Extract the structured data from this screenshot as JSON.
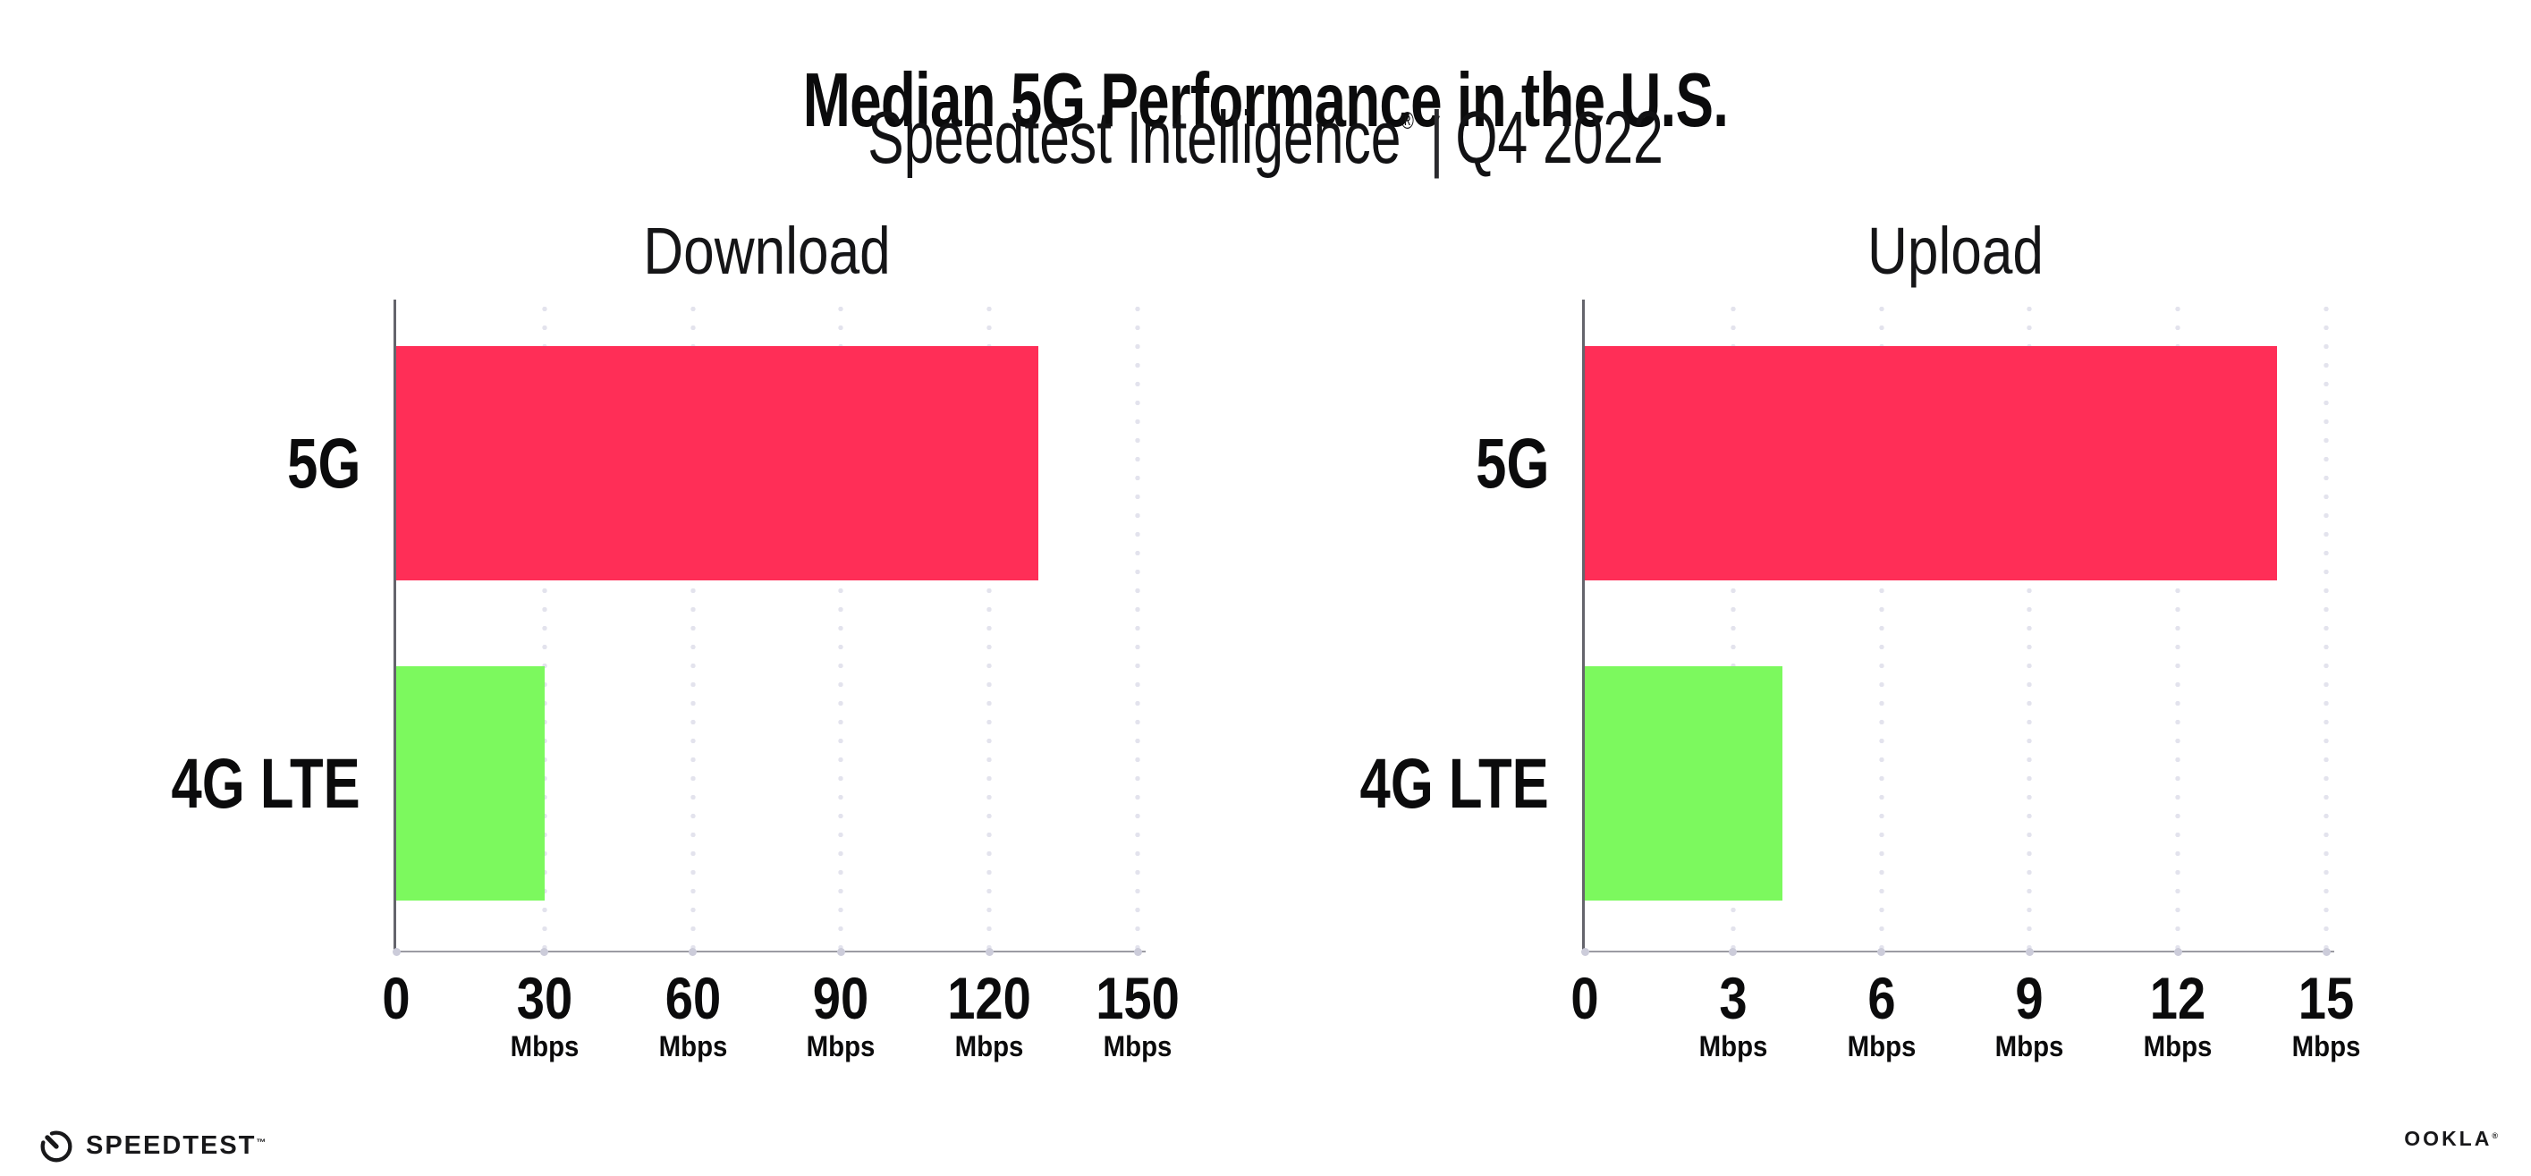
{
  "header": {
    "title": "Median 5G Performance in the U.S.",
    "subtitle_product": "Speedtest Intelligence",
    "subtitle_reg": "®",
    "subtitle_separator": "|",
    "subtitle_period": "Q4 2022"
  },
  "chart_data": [
    {
      "type": "bar",
      "orientation": "horizontal",
      "title": "Download",
      "categories": [
        "5G",
        "4G LTE"
      ],
      "values": [
        130,
        30
      ],
      "unit": "Mbps",
      "xlim": [
        0,
        150
      ],
      "xticks": [
        0,
        30,
        60,
        90,
        120,
        150
      ],
      "tick_unit_label": "Mbps",
      "bar_colors": [
        "#ff2e57",
        "#7cf95e"
      ],
      "grid": "dotted-vertical",
      "legend": "none"
    },
    {
      "type": "bar",
      "orientation": "horizontal",
      "title": "Upload",
      "categories": [
        "5G",
        "4G LTE"
      ],
      "values": [
        14,
        4
      ],
      "unit": "Mbps",
      "xlim": [
        0,
        15
      ],
      "xticks": [
        0,
        3,
        6,
        9,
        12,
        15
      ],
      "tick_unit_label": "Mbps",
      "bar_colors": [
        "#ff2e57",
        "#7cf95e"
      ],
      "grid": "dotted-vertical",
      "legend": "none"
    }
  ],
  "footer": {
    "speedtest_label": "SPEEDTEST",
    "speedtest_tm": "™",
    "speedtest_icon": "speedtest-gauge-icon",
    "ookla_label": "OOKLA",
    "ookla_reg": "®"
  },
  "colors": {
    "bar_5g": "#ff2e57",
    "bar_4g_lte": "#7cf95e",
    "gridline": "#e3e3ed",
    "x_axis_line": "#9b9ba3",
    "y_axis_line": "#64646c",
    "axis_tick_dot": "#ccccda",
    "text": "#0b0b0c",
    "background": "#ffffff"
  }
}
